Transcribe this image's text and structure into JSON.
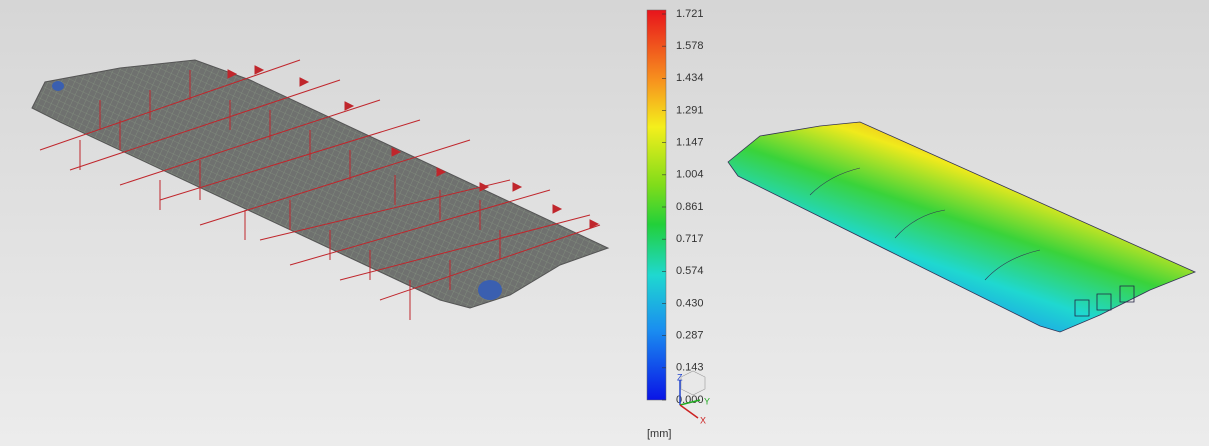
{
  "colorbar": {
    "ticks": [
      "1.721",
      "1.578",
      "1.434",
      "1.291",
      "1.147",
      "1.004",
      "0.861",
      "0.717",
      "0.574",
      "0.430",
      "0.287",
      "0.143",
      "0.000"
    ],
    "unit": "[mm]"
  },
  "triad": {
    "z": "Z",
    "y": "Y",
    "x": "X"
  }
}
